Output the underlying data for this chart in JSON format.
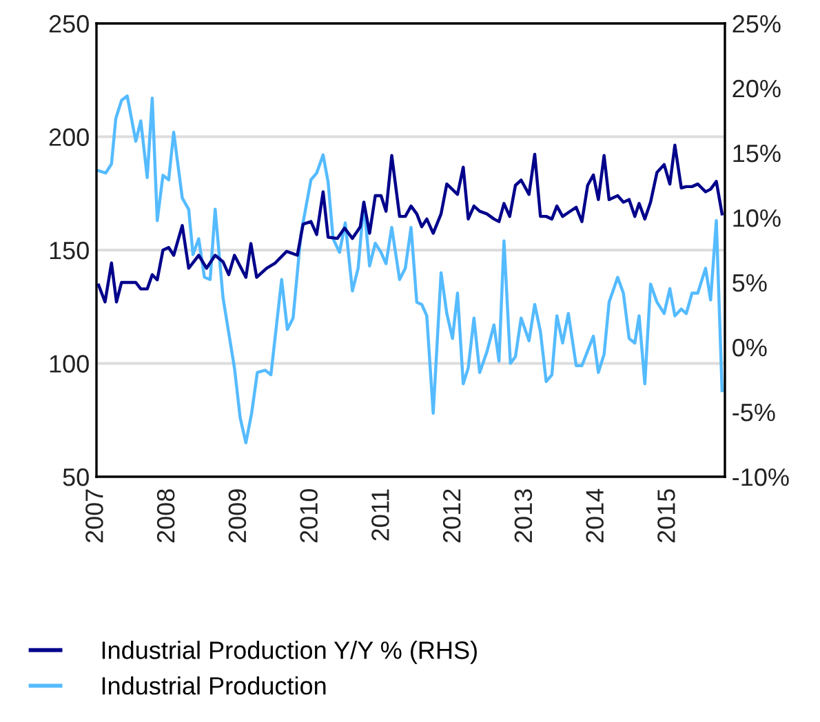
{
  "chart_data": {
    "type": "line",
    "xlim": [
      2007,
      2015.79
    ],
    "xticks": [
      2007,
      2008,
      2009,
      2010,
      2011,
      2012,
      2013,
      2014,
      2015
    ],
    "ylim": [
      50,
      250
    ],
    "yticks": [
      50,
      100,
      150,
      200,
      250
    ],
    "y2lim": [
      -10,
      25
    ],
    "y2ticks": [
      {
        "value": -10,
        "label": "-10%"
      },
      {
        "value": -5,
        "label": "-5%"
      },
      {
        "value": 0,
        "label": "0%"
      },
      {
        "value": 5,
        "label": "5%"
      },
      {
        "value": 10,
        "label": "10%"
      },
      {
        "value": 15,
        "label": "15%"
      },
      {
        "value": 20,
        "label": "20%"
      },
      {
        "value": 25,
        "label": "25%"
      }
    ],
    "grid": "y",
    "legend": "bottom",
    "marker": "none",
    "line_style": "solid",
    "series": [
      {
        "name": "Industrial Production Y/Y % (RHS)",
        "color": "#00008b",
        "axis": "y2",
        "x": [
          2007.03,
          2007.12,
          2007.21,
          2007.28,
          2007.35,
          2007.55,
          2007.62,
          2007.71,
          2007.78,
          2007.85,
          2007.93,
          2008.01,
          2008.08,
          2008.2,
          2008.29,
          2008.43,
          2008.54,
          2008.66,
          2008.77,
          2008.85,
          2008.93,
          2009.09,
          2009.16,
          2009.24,
          2009.38,
          2009.5,
          2009.66,
          2009.81,
          2009.89,
          2010.0,
          2010.08,
          2010.17,
          2010.24,
          2010.37,
          2010.47,
          2010.58,
          2010.69,
          2010.74,
          2010.82,
          2010.9,
          2010.98,
          2011.05,
          2011.13,
          2011.24,
          2011.32,
          2011.4,
          2011.48,
          2011.55,
          2011.62,
          2011.71,
          2011.82,
          2011.9,
          2012.05,
          2012.13,
          2012.2,
          2012.28,
          2012.36,
          2012.46,
          2012.56,
          2012.63,
          2012.7,
          2012.78,
          2012.86,
          2012.94,
          2013.05,
          2013.13,
          2013.21,
          2013.29,
          2013.37,
          2013.44,
          2013.52,
          2013.6,
          2013.71,
          2013.79,
          2013.87,
          2013.95,
          2014.02,
          2014.1,
          2014.17,
          2014.29,
          2014.37,
          2014.45,
          2014.53,
          2014.59,
          2014.67,
          2014.75,
          2014.84,
          2014.94,
          2015.02,
          2015.09,
          2015.18,
          2015.25,
          2015.33,
          2015.41,
          2015.52,
          2015.59,
          2015.67,
          2015.75
        ],
        "values": [
          4.8,
          3.5,
          6.5,
          3.5,
          5.0,
          5.0,
          4.5,
          4.5,
          5.6,
          5.2,
          7.5,
          7.7,
          7.1,
          9.4,
          6.1,
          7.1,
          6.1,
          7.1,
          6.6,
          5.6,
          7.1,
          5.4,
          8.0,
          5.4,
          6.1,
          6.5,
          7.4,
          7.1,
          9.5,
          9.7,
          8.7,
          12.0,
          8.5,
          8.4,
          9.2,
          8.4,
          9.3,
          11.2,
          8.8,
          11.7,
          11.7,
          10.5,
          14.8,
          10.1,
          10.1,
          10.9,
          10.3,
          9.3,
          9.9,
          8.8,
          10.3,
          12.6,
          11.8,
          13.9,
          9.9,
          10.9,
          10.5,
          10.3,
          9.9,
          9.7,
          11.1,
          10.1,
          12.5,
          12.9,
          11.8,
          14.9,
          10.1,
          10.1,
          9.9,
          10.9,
          10.1,
          10.4,
          10.8,
          9.7,
          12.5,
          13.3,
          11.4,
          14.8,
          11.4,
          11.7,
          11.2,
          11.4,
          10.1,
          11.1,
          9.9,
          11.2,
          13.5,
          14.1,
          12.6,
          15.6,
          12.3,
          12.4,
          12.4,
          12.6,
          12.0,
          12.2,
          12.8,
          10.3
        ]
      },
      {
        "name": "Industrial Production",
        "color": "#55bbff",
        "axis": "y",
        "x": [
          2007.03,
          2007.13,
          2007.21,
          2007.27,
          2007.35,
          2007.43,
          2007.55,
          2007.62,
          2007.71,
          2007.78,
          2007.85,
          2007.93,
          2008.01,
          2008.08,
          2008.2,
          2008.29,
          2008.35,
          2008.43,
          2008.51,
          2008.59,
          2008.66,
          2008.77,
          2008.93,
          2009.01,
          2009.09,
          2009.17,
          2009.25,
          2009.36,
          2009.44,
          2009.59,
          2009.67,
          2009.75,
          2009.86,
          2010.0,
          2010.08,
          2010.17,
          2010.24,
          2010.31,
          2010.4,
          2010.48,
          2010.58,
          2010.66,
          2010.74,
          2010.82,
          2010.9,
          2010.98,
          2011.05,
          2011.13,
          2011.24,
          2011.32,
          2011.4,
          2011.48,
          2011.55,
          2011.62,
          2011.71,
          2011.82,
          2011.9,
          2011.98,
          2012.05,
          2012.13,
          2012.2,
          2012.28,
          2012.36,
          2012.46,
          2012.56,
          2012.63,
          2012.7,
          2012.79,
          2012.86,
          2012.94,
          2013.05,
          2013.13,
          2013.21,
          2013.29,
          2013.37,
          2013.44,
          2013.52,
          2013.6,
          2013.71,
          2013.79,
          2013.95,
          2014.02,
          2014.1,
          2014.17,
          2014.29,
          2014.37,
          2014.45,
          2014.53,
          2014.59,
          2014.67,
          2014.75,
          2014.84,
          2014.94,
          2015.02,
          2015.09,
          2015.18,
          2015.25,
          2015.33,
          2015.41,
          2015.52,
          2015.59,
          2015.67,
          2015.75
        ],
        "values": [
          185,
          184,
          188,
          208,
          216,
          218,
          198,
          207,
          182,
          217,
          163,
          183,
          181,
          202,
          173,
          168,
          148,
          155,
          138,
          137,
          168,
          129,
          98,
          76,
          65,
          78,
          96,
          97,
          95,
          137,
          115,
          120,
          157,
          181,
          184,
          192,
          180,
          155,
          149,
          162,
          132,
          142,
          171,
          143,
          153,
          149,
          144,
          160,
          137,
          142,
          160,
          127,
          126,
          121,
          78,
          140,
          122,
          111,
          131,
          91,
          98,
          120,
          96,
          105,
          117,
          101,
          154,
          100,
          103,
          120,
          110,
          126,
          114,
          92,
          95,
          121,
          109,
          122,
          99,
          99,
          112,
          96,
          104,
          127,
          138,
          131,
          111,
          109,
          121,
          91,
          135,
          127,
          122,
          133,
          121,
          124,
          122,
          131,
          131,
          142,
          128,
          163,
          88
        ]
      }
    ]
  }
}
